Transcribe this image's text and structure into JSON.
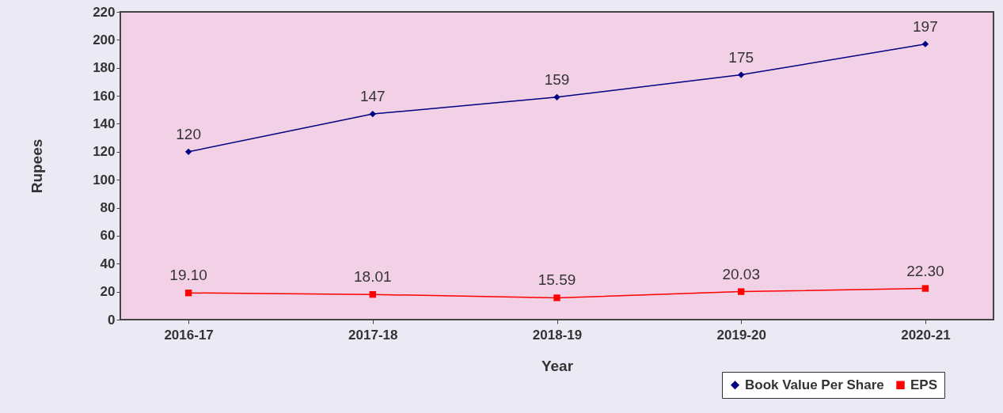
{
  "chart_data": {
    "type": "line",
    "xlabel": "Year",
    "ylabel": "Rupees",
    "categories": [
      "2016-17",
      "2017-18",
      "2018-19",
      "2019-20",
      "2020-21"
    ],
    "series": [
      {
        "name": "Book Value Per Share",
        "color": "#000080",
        "marker": "diamond",
        "values": [
          120,
          147,
          159,
          175,
          197
        ],
        "value_labels": [
          "120",
          "147",
          "159",
          "175",
          "197"
        ]
      },
      {
        "name": "EPS",
        "color": "#ff0000",
        "marker": "square",
        "values": [
          19.1,
          18.01,
          15.59,
          20.03,
          22.3
        ],
        "value_labels": [
          "19.10",
          "18.01",
          "15.59",
          "20.03",
          "22.30"
        ]
      }
    ],
    "ylim": [
      0,
      220
    ],
    "yticks": [
      0,
      20,
      40,
      60,
      80,
      100,
      120,
      140,
      160,
      180,
      200,
      220
    ],
    "grid": false,
    "legend": "bottom right",
    "line_style": "solid"
  }
}
